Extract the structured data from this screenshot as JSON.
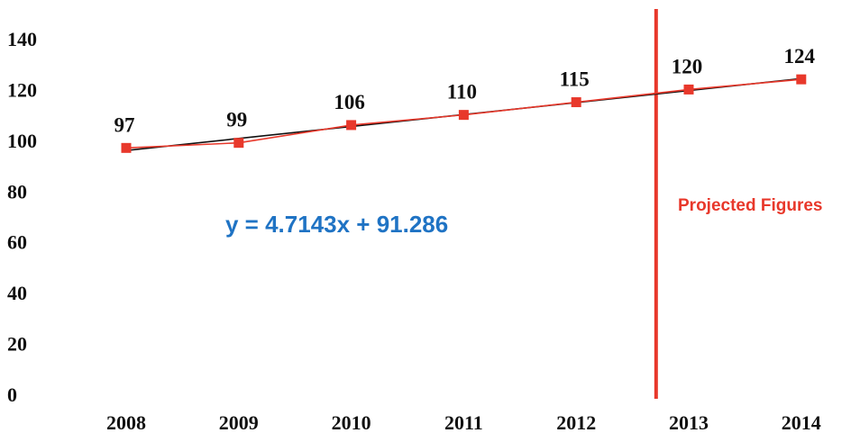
{
  "chart_data": {
    "type": "line",
    "title": "",
    "xlabel": "",
    "ylabel": "",
    "categories": [
      "2008",
      "2009",
      "2010",
      "2011",
      "2012",
      "2013",
      "2014"
    ],
    "series": [
      {
        "values": [
          97,
          99,
          106,
          110,
          115,
          120,
          124
        ],
        "color": "#e8382b",
        "marker": "square"
      }
    ],
    "trendline": {
      "slope": 4.7143,
      "intercept": 91.286,
      "color": "#111111"
    },
    "data_labels": [
      "97",
      "99",
      "106",
      "110",
      "115",
      "120",
      "124"
    ],
    "ylim": [
      0,
      140
    ],
    "y_ticks": [
      "0",
      "20",
      "40",
      "60",
      "80",
      "100",
      "120",
      "140"
    ],
    "grid": false,
    "legend": "none",
    "equation_text": "y = 4.7143x + 91.286",
    "equation_color": "#1f73c4",
    "projection": {
      "between": [
        "2012",
        "2013"
      ],
      "label": "Projected Figures",
      "color": "#e8382b"
    }
  }
}
